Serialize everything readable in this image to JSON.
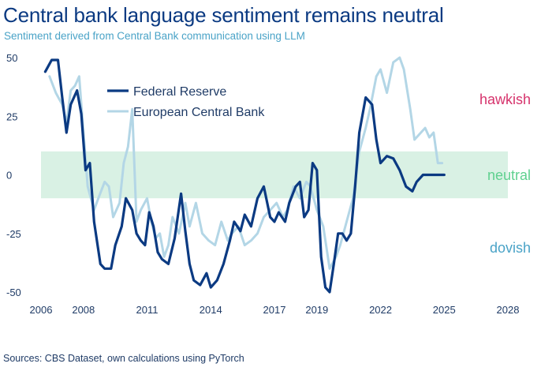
{
  "title": "Central bank language sentiment remains neutral",
  "subtitle": "Sentiment derived from Central Bank communication using LLM",
  "source": "Sources: CBS Dataset, own calculations using PyTorch",
  "colors": {
    "fed": "#0b3a82",
    "ecb": "#b3d6e6",
    "neutral_band": "#d9f1e4",
    "hawkish": "#d6336c",
    "neutral": "#5fd08f",
    "dovish": "#4aa3c7"
  },
  "chart_data": {
    "type": "line",
    "xlim": [
      2006,
      2028
    ],
    "ylim": [
      -50,
      50
    ],
    "x_ticks": [
      2006,
      2008,
      2011,
      2014,
      2017,
      2019,
      2022,
      2025,
      2028
    ],
    "y_ticks": [
      50,
      25,
      0,
      -25,
      -50
    ],
    "x_tick_labels": [
      "2006",
      "2008",
      "2011",
      "2014",
      "2017",
      "2019",
      "2022",
      "2025",
      "2028"
    ],
    "y_tick_labels": [
      "50",
      "25",
      "0",
      "-25",
      "-50"
    ],
    "neutral_band": [
      -10,
      10
    ],
    "zone_labels": {
      "hawkish": "hawkish",
      "neutral": "neutral",
      "dovish": "dovish"
    },
    "legend_position": "top-left",
    "series": [
      {
        "name": "Federal Reserve",
        "x": [
          2006.2,
          2006.5,
          2006.8,
          2007.0,
          2007.2,
          2007.4,
          2007.7,
          2007.9,
          2008.1,
          2008.3,
          2008.5,
          2008.8,
          2009.0,
          2009.3,
          2009.5,
          2009.8,
          2010.0,
          2010.3,
          2010.5,
          2010.7,
          2010.9,
          2011.1,
          2011.3,
          2011.5,
          2011.7,
          2012.0,
          2012.3,
          2012.6,
          2012.8,
          2013.0,
          2013.2,
          2013.5,
          2013.8,
          2014.0,
          2014.3,
          2014.6,
          2014.9,
          2015.1,
          2015.4,
          2015.6,
          2015.9,
          2016.2,
          2016.5,
          2016.8,
          2017.0,
          2017.2,
          2017.5,
          2017.7,
          2018.0,
          2018.2,
          2018.4,
          2018.6,
          2018.8,
          2019.0,
          2019.2,
          2019.4,
          2019.6,
          2019.8,
          2020.0,
          2020.2,
          2020.4,
          2020.6,
          2020.8,
          2021.0,
          2021.3,
          2021.6,
          2021.8,
          2022.0,
          2022.3,
          2022.6,
          2022.9,
          2023.2,
          2023.5,
          2023.7,
          2024.0,
          2024.2,
          2024.4,
          2024.6,
          2024.8,
          2025.0
        ],
        "y": [
          44,
          49,
          49,
          33,
          18,
          30,
          36,
          26,
          2,
          5,
          -20,
          -38,
          -40,
          -40,
          -30,
          -22,
          -10,
          -15,
          -25,
          -28,
          -30,
          -16,
          -22,
          -33,
          -36,
          -38,
          -27,
          -8,
          -24,
          -38,
          -45,
          -47,
          -42,
          -48,
          -45,
          -38,
          -28,
          -20,
          -24,
          -17,
          -22,
          -10,
          -5,
          -18,
          -20,
          -16,
          -20,
          -12,
          -5,
          -3,
          -18,
          -15,
          5,
          2,
          -35,
          -48,
          -50,
          -38,
          -25,
          -25,
          -28,
          -25,
          -5,
          18,
          33,
          30,
          15,
          5,
          8,
          7,
          2,
          -5,
          -7,
          -3,
          0,
          0,
          0,
          0,
          0,
          0
        ]
      },
      {
        "name": "European Central Bank",
        "x": [
          2006.4,
          2006.7,
          2007.0,
          2007.2,
          2007.4,
          2007.6,
          2007.8,
          2008.0,
          2008.2,
          2008.5,
          2008.7,
          2009.0,
          2009.2,
          2009.4,
          2009.7,
          2009.9,
          2010.1,
          2010.3,
          2010.5,
          2010.7,
          2011.0,
          2011.2,
          2011.4,
          2011.6,
          2011.8,
          2012.0,
          2012.2,
          2012.5,
          2012.8,
          2013.0,
          2013.3,
          2013.6,
          2013.9,
          2014.2,
          2014.5,
          2014.8,
          2015.0,
          2015.3,
          2015.6,
          2015.9,
          2016.2,
          2016.5,
          2016.8,
          2017.1,
          2017.4,
          2017.6,
          2017.9,
          2018.2,
          2018.5,
          2018.7,
          2019.0,
          2019.3,
          2019.6,
          2019.9,
          2020.1,
          2020.4,
          2020.7,
          2021.0,
          2021.3,
          2021.5,
          2021.8,
          2022.0,
          2022.3,
          2022.6,
          2022.9,
          2023.1,
          2023.4,
          2023.6,
          2023.9,
          2024.1,
          2024.3,
          2024.5,
          2024.7,
          2024.9
        ],
        "y": [
          42,
          35,
          30,
          22,
          36,
          38,
          42,
          18,
          -5,
          -15,
          -10,
          -3,
          -5,
          -18,
          -12,
          5,
          12,
          28,
          -20,
          -15,
          -10,
          -20,
          -27,
          -25,
          -35,
          -30,
          -18,
          -25,
          -12,
          -22,
          -12,
          -25,
          -28,
          -30,
          -20,
          -28,
          -25,
          -22,
          -30,
          -28,
          -25,
          -18,
          -15,
          -12,
          -18,
          -15,
          -5,
          -10,
          -3,
          -5,
          -15,
          -22,
          -40,
          -35,
          -30,
          -20,
          -10,
          10,
          20,
          28,
          42,
          45,
          35,
          48,
          50,
          45,
          28,
          15,
          18,
          20,
          16,
          18,
          5,
          5
        ]
      }
    ]
  }
}
